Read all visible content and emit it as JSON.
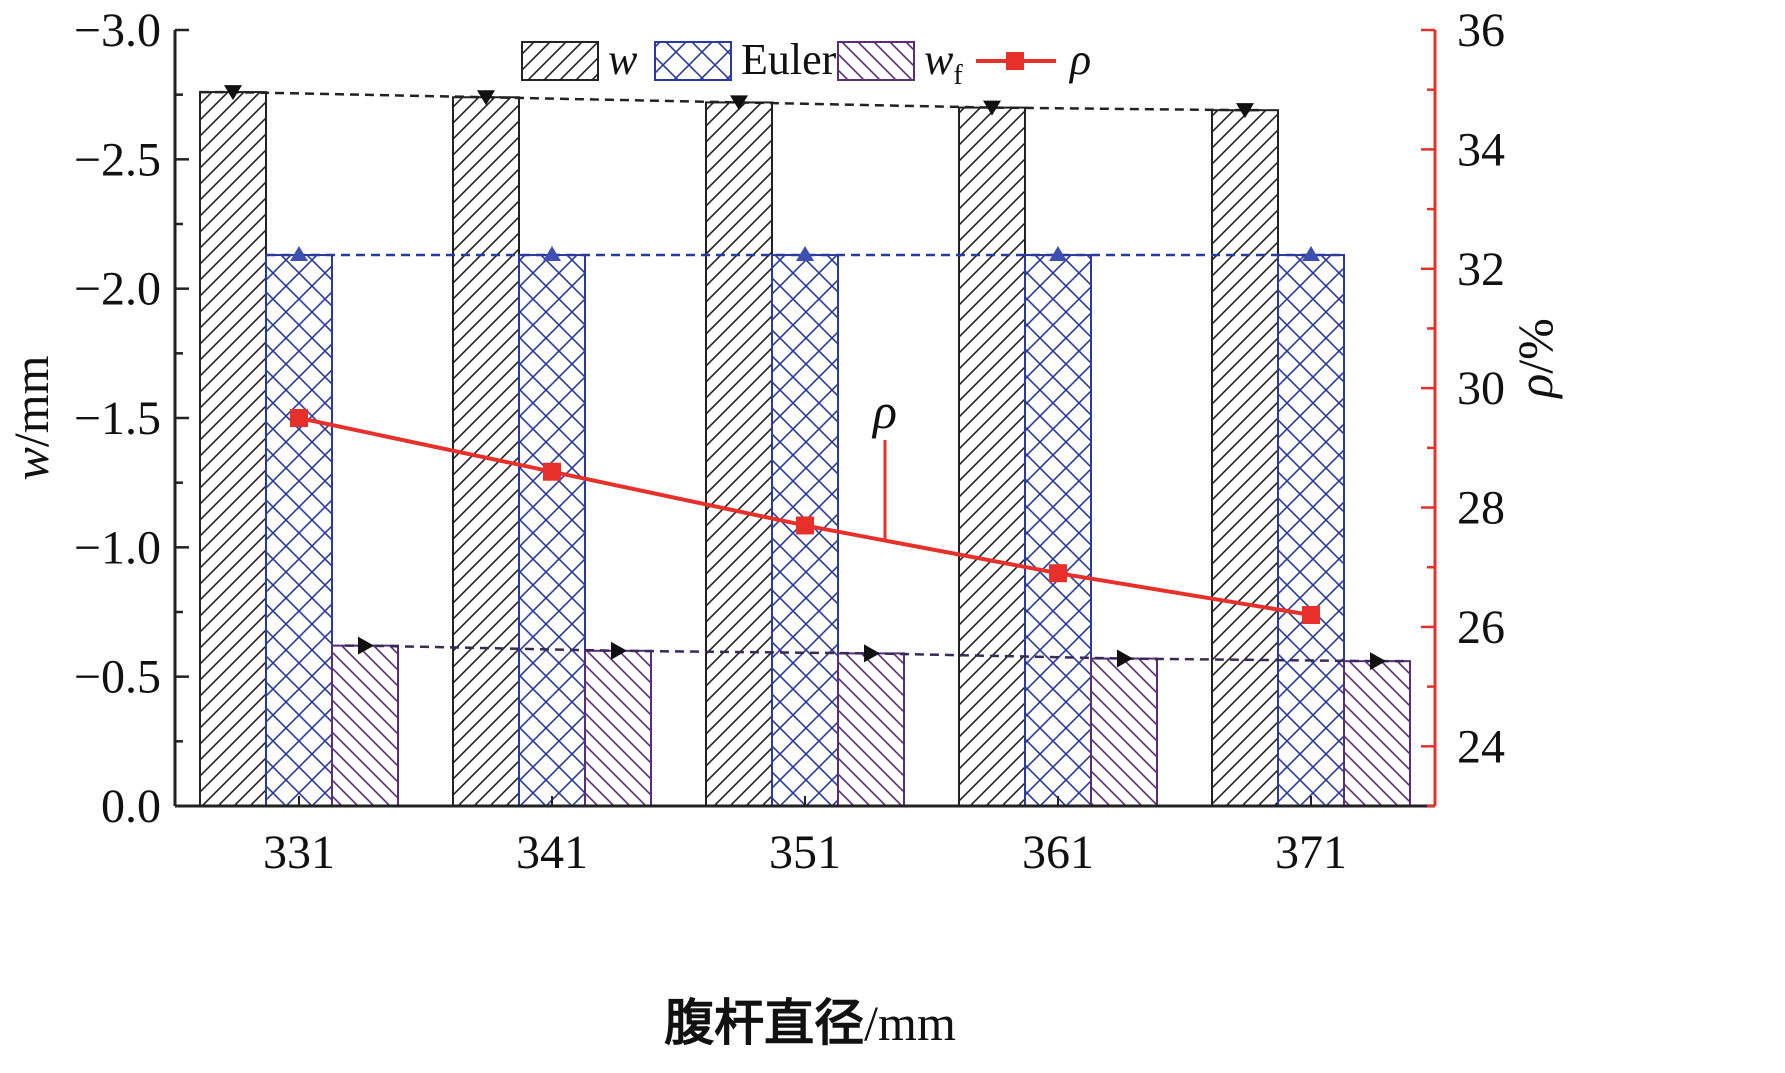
{
  "chart_data": {
    "type": "bar",
    "categories": [
      "331",
      "341",
      "351",
      "361",
      "371"
    ],
    "xlabel_cn": "腹杆直径",
    "xlabel_unit": "/mm",
    "ylabel_var": "w",
    "ylabel_unit": "/mm",
    "y2label_var": "ρ",
    "y2label_unit": "/%",
    "ylim": [
      0.0,
      -3.0
    ],
    "y_ticks": [
      "0.0",
      "−0.5",
      "−1.0",
      "−1.5",
      "−2.0",
      "−2.5",
      "−3.0"
    ],
    "y_tick_values": [
      0.0,
      -0.5,
      -1.0,
      -1.5,
      -2.0,
      -2.5,
      -3.0
    ],
    "y2lim": [
      23,
      36
    ],
    "y2_ticks": [
      "24",
      "26",
      "28",
      "30",
      "32",
      "34",
      "36"
    ],
    "y2_tick_values": [
      24,
      26,
      28,
      30,
      32,
      34,
      36
    ],
    "series": [
      {
        "name": "w",
        "axis": "left",
        "kind": "bar",
        "pattern": "hatch-forward",
        "color": "#222222",
        "values": [
          -2.76,
          -2.74,
          -2.72,
          -2.7,
          -2.69
        ]
      },
      {
        "name": "Euler",
        "axis": "left",
        "kind": "bar",
        "pattern": "crosshatch",
        "color": "#2b3a9e",
        "values": [
          -2.13,
          -2.13,
          -2.13,
          -2.13,
          -2.13
        ]
      },
      {
        "name": "w",
        "subscript": "f",
        "axis": "left",
        "kind": "bar",
        "pattern": "hatch-back",
        "color": "#5a2d7a",
        "values": [
          -0.62,
          -0.6,
          -0.59,
          -0.57,
          -0.56
        ]
      },
      {
        "name": "ρ",
        "axis": "right",
        "kind": "line",
        "color": "#e8302a",
        "values": [
          29.5,
          28.6,
          27.7,
          26.9,
          26.2
        ]
      }
    ],
    "annotation": {
      "text": "ρ",
      "points_to_series": "ρ"
    },
    "legend": "top-center",
    "grid": false,
    "colors": {
      "right_axis": "#e8302a",
      "left_axis": "#222222",
      "trend_w": "#222222",
      "trend_euler": "#2b3a9e",
      "trend_wf": "#3a2a55"
    }
  }
}
